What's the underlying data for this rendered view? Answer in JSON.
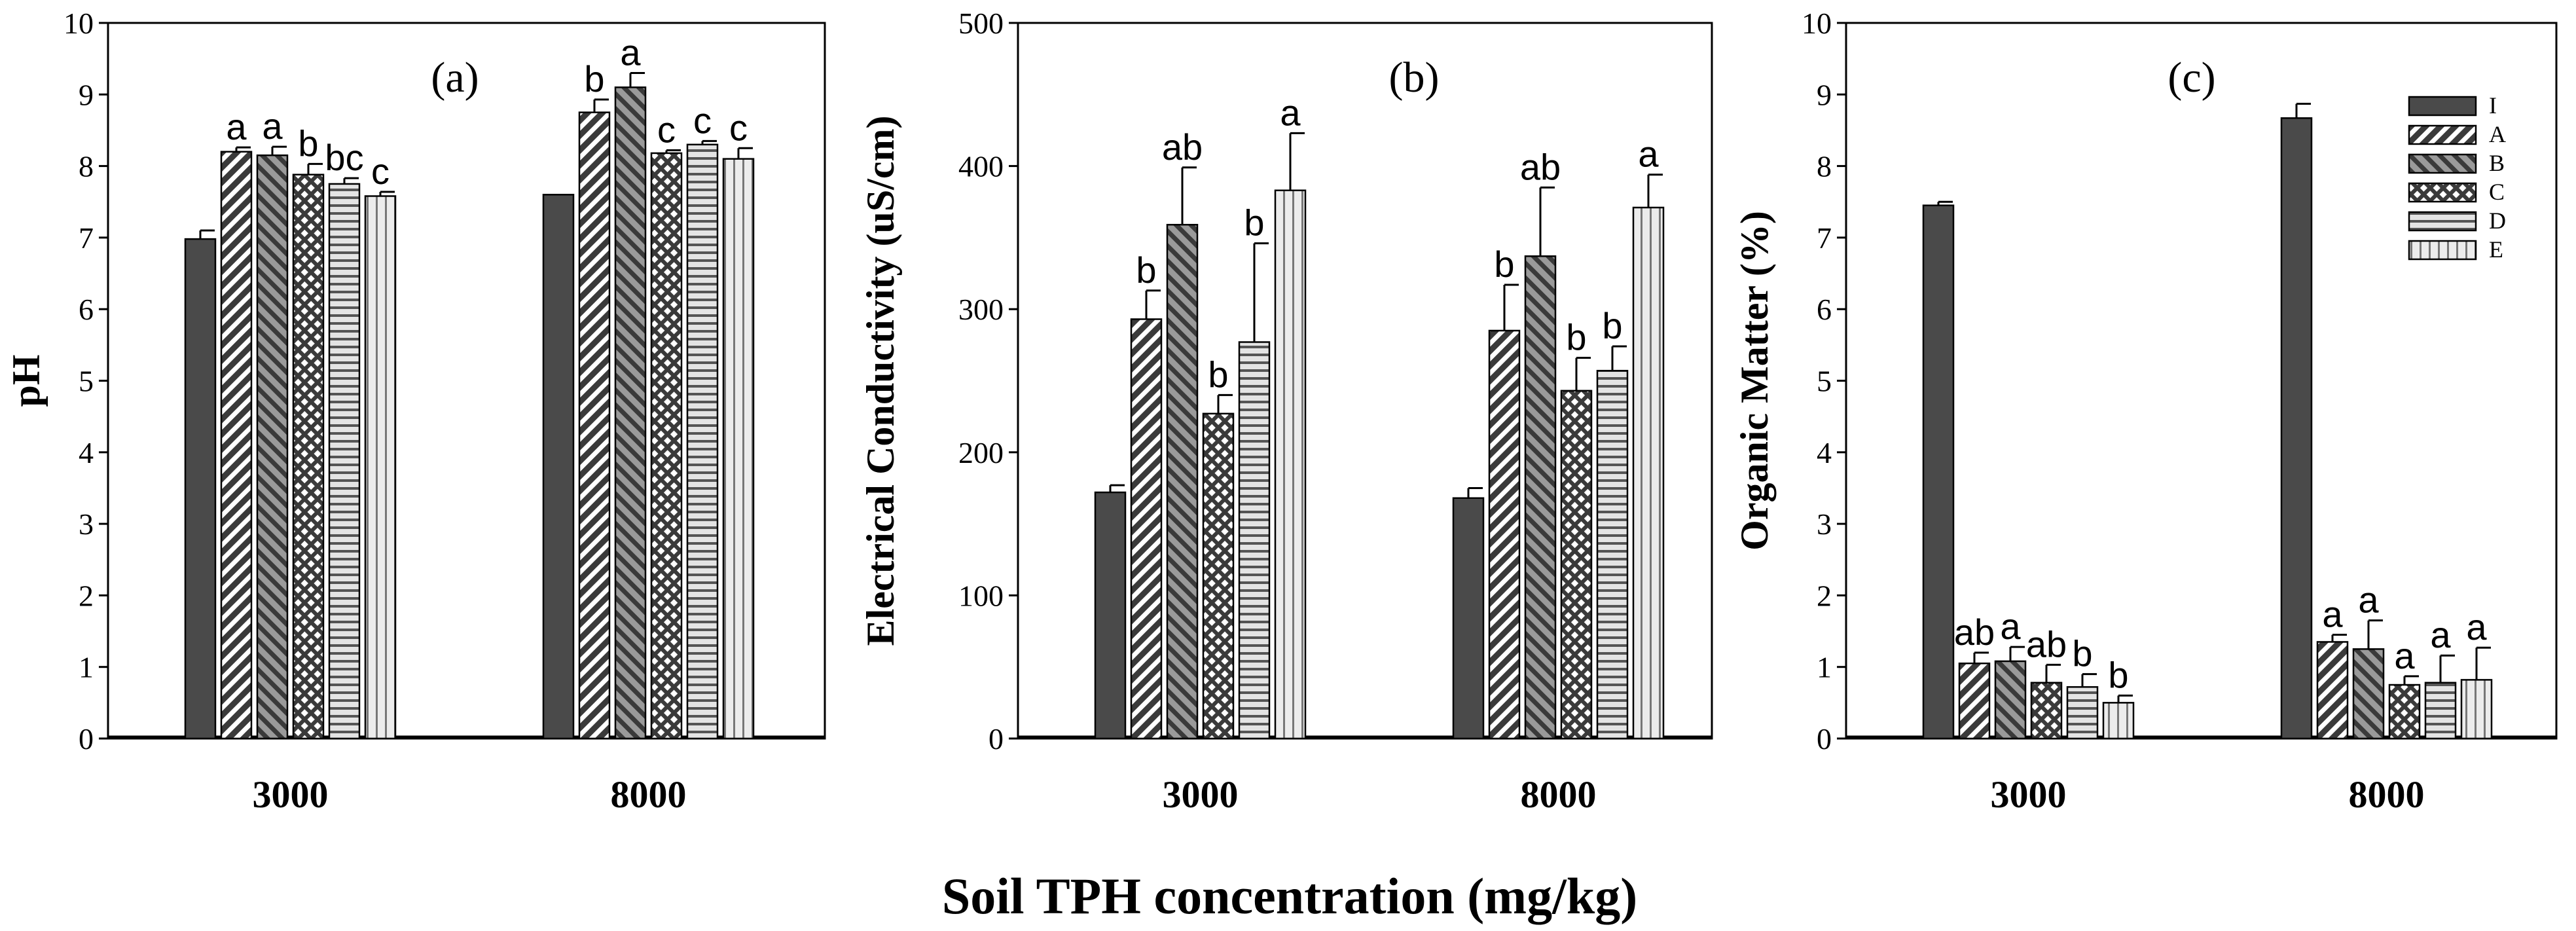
{
  "figure": {
    "xlabel": "Soil TPH concentration (mg/kg)"
  },
  "legend": {
    "entries": [
      {
        "label": "I",
        "pattern": "solid"
      },
      {
        "label": "A",
        "pattern": "diag-right"
      },
      {
        "label": "B",
        "pattern": "diag-left"
      },
      {
        "label": "C",
        "pattern": "cross"
      },
      {
        "label": "D",
        "pattern": "horiz"
      },
      {
        "label": "E",
        "pattern": "vert"
      }
    ]
  },
  "colors": {
    "solid": "#4a4a4a",
    "hatch_bg": "#ffffff",
    "hatch_line": "#3a3a3a",
    "light_fill": "#d9d9d9",
    "axis": "#000000"
  },
  "chart_data": [
    {
      "type": "bar",
      "tag": "(a)",
      "title": "",
      "xlabel": "",
      "ylabel": "pH",
      "ylim": [
        0,
        10
      ],
      "yticks": [
        0,
        1,
        2,
        3,
        4,
        5,
        6,
        7,
        8,
        9,
        10
      ],
      "categories": [
        "3000",
        "8000"
      ],
      "series": [
        {
          "name": "I",
          "values": [
            6.98,
            7.6
          ],
          "errors": [
            0.12,
            0.0
          ],
          "labels": [
            "",
            ""
          ]
        },
        {
          "name": "A",
          "values": [
            8.2,
            8.75
          ],
          "errors": [
            0.06,
            0.18
          ],
          "labels": [
            "a",
            "b"
          ]
        },
        {
          "name": "B",
          "values": [
            8.15,
            9.1
          ],
          "errors": [
            0.12,
            0.2
          ],
          "labels": [
            "a",
            "a"
          ]
        },
        {
          "name": "C",
          "values": [
            7.88,
            8.18
          ],
          "errors": [
            0.15,
            0.04
          ],
          "labels": [
            "b",
            "c"
          ]
        },
        {
          "name": "D",
          "values": [
            7.75,
            8.3
          ],
          "errors": [
            0.08,
            0.05
          ],
          "labels": [
            "bc",
            "c"
          ]
        },
        {
          "name": "E",
          "values": [
            7.58,
            8.1
          ],
          "errors": [
            0.06,
            0.15
          ],
          "labels": [
            "c",
            "c"
          ]
        }
      ]
    },
    {
      "type": "bar",
      "tag": "(b)",
      "title": "",
      "xlabel": "",
      "ylabel": "Electrical Conductivity (uS/cm)",
      "ylim": [
        0,
        500
      ],
      "yticks": [
        0,
        100,
        200,
        300,
        400,
        500
      ],
      "categories": [
        "3000",
        "8000"
      ],
      "series": [
        {
          "name": "I",
          "values": [
            172,
            168
          ],
          "errors": [
            5,
            7
          ],
          "labels": [
            "",
            ""
          ]
        },
        {
          "name": "A",
          "values": [
            293,
            285
          ],
          "errors": [
            20,
            32
          ],
          "labels": [
            "b",
            "b"
          ]
        },
        {
          "name": "B",
          "values": [
            359,
            337
          ],
          "errors": [
            40,
            48
          ],
          "labels": [
            "ab",
            "ab"
          ]
        },
        {
          "name": "C",
          "values": [
            227,
            243
          ],
          "errors": [
            13,
            23
          ],
          "labels": [
            "b",
            "b"
          ]
        },
        {
          "name": "D",
          "values": [
            277,
            257
          ],
          "errors": [
            69,
            17
          ],
          "labels": [
            "b",
            "b"
          ]
        },
        {
          "name": "E",
          "values": [
            383,
            371
          ],
          "errors": [
            40,
            23
          ],
          "labels": [
            "a",
            "a"
          ]
        }
      ]
    },
    {
      "type": "bar",
      "tag": "(c)",
      "title": "",
      "xlabel": "",
      "ylabel": "Organic Matter (%)",
      "ylim": [
        0,
        10
      ],
      "yticks": [
        0,
        1,
        2,
        3,
        4,
        5,
        6,
        7,
        8,
        9,
        10
      ],
      "categories": [
        "3000",
        "8000"
      ],
      "series": [
        {
          "name": "I",
          "values": [
            7.45,
            8.67
          ],
          "errors": [
            0.05,
            0.2
          ],
          "labels": [
            "",
            ""
          ]
        },
        {
          "name": "A",
          "values": [
            1.05,
            1.35
          ],
          "errors": [
            0.15,
            0.1
          ],
          "labels": [
            "ab",
            "a"
          ]
        },
        {
          "name": "B",
          "values": [
            1.08,
            1.25
          ],
          "errors": [
            0.2,
            0.4
          ],
          "labels": [
            "a",
            "a"
          ]
        },
        {
          "name": "C",
          "values": [
            0.78,
            0.75
          ],
          "errors": [
            0.25,
            0.12
          ],
          "labels": [
            "ab",
            "a"
          ]
        },
        {
          "name": "D",
          "values": [
            0.72,
            0.78
          ],
          "errors": [
            0.18,
            0.38
          ],
          "labels": [
            "b",
            "a"
          ]
        },
        {
          "name": "E",
          "values": [
            0.5,
            0.82
          ],
          "errors": [
            0.1,
            0.45
          ],
          "labels": [
            "b",
            "a"
          ]
        }
      ]
    }
  ]
}
